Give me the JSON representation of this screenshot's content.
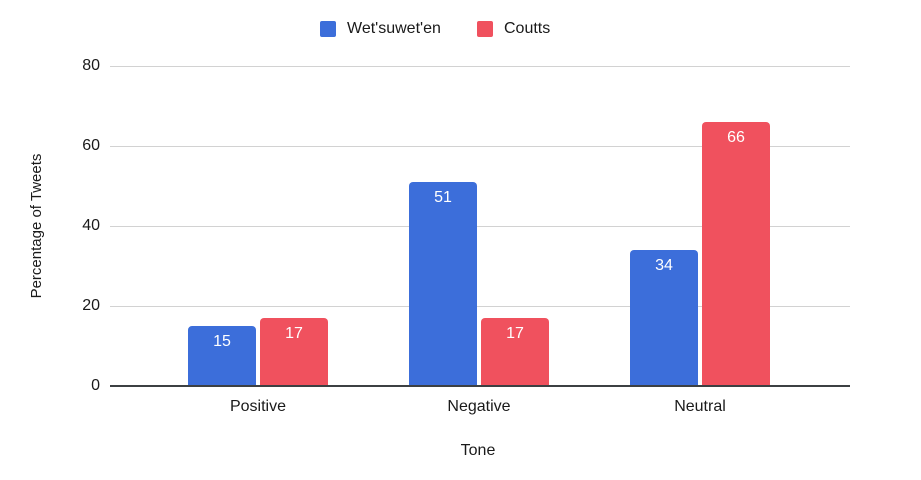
{
  "chart_data": {
    "type": "bar",
    "categories": [
      "Positive",
      "Negative",
      "Neutral"
    ],
    "series": [
      {
        "name": "Wet'suwet'en",
        "color": "#3C6EDA",
        "values": [
          15,
          51,
          34
        ]
      },
      {
        "name": "Coutts",
        "color": "#F0515E",
        "values": [
          17,
          17,
          66
        ]
      }
    ],
    "xlabel": "Tone",
    "ylabel": "Percentage of Tweets",
    "ylim": [
      0,
      80
    ],
    "yticks": [
      0,
      20,
      40,
      60,
      80
    ],
    "grid": "horizontal",
    "legend_position": "top-center",
    "value_label_style": "white, inside bar top"
  },
  "colors": {
    "background": "#ffffff",
    "gridline": "#d2d2d2",
    "axis_line": "#3c4043",
    "label_text": "#1a1a1a",
    "value_label_text": "#ffffff"
  }
}
